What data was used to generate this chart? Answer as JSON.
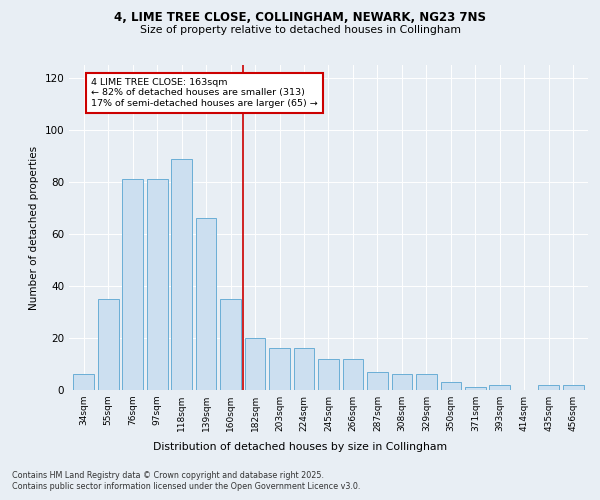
{
  "title1": "4, LIME TREE CLOSE, COLLINGHAM, NEWARK, NG23 7NS",
  "title2": "Size of property relative to detached houses in Collingham",
  "xlabel": "Distribution of detached houses by size in Collingham",
  "ylabel": "Number of detached properties",
  "bar_labels": [
    "34sqm",
    "55sqm",
    "76sqm",
    "97sqm",
    "118sqm",
    "139sqm",
    "160sqm",
    "182sqm",
    "203sqm",
    "224sqm",
    "245sqm",
    "266sqm",
    "287sqm",
    "308sqm",
    "329sqm",
    "350sqm",
    "371sqm",
    "393sqm",
    "414sqm",
    "435sqm",
    "456sqm"
  ],
  "bar_values": [
    6,
    35,
    81,
    81,
    89,
    66,
    35,
    20,
    16,
    16,
    12,
    12,
    7,
    6,
    6,
    3,
    1,
    2,
    0,
    2,
    2
  ],
  "bar_color": "#ccdff0",
  "bar_edge_color": "#6aaed6",
  "annotation_text_line1": "4 LIME TREE CLOSE: 163sqm",
  "annotation_text_line2": "← 82% of detached houses are smaller (313)",
  "annotation_text_line3": "17% of semi-detached houses are larger (65) →",
  "vline_color": "#cc0000",
  "annotation_box_color": "#ffffff",
  "annotation_box_edge": "#cc0000",
  "ylim": [
    0,
    125
  ],
  "yticks": [
    0,
    20,
    40,
    60,
    80,
    100,
    120
  ],
  "footer1": "Contains HM Land Registry data © Crown copyright and database right 2025.",
  "footer2": "Contains public sector information licensed under the Open Government Licence v3.0.",
  "bg_color": "#e8eef4",
  "plot_bg_color": "#e8eef4"
}
